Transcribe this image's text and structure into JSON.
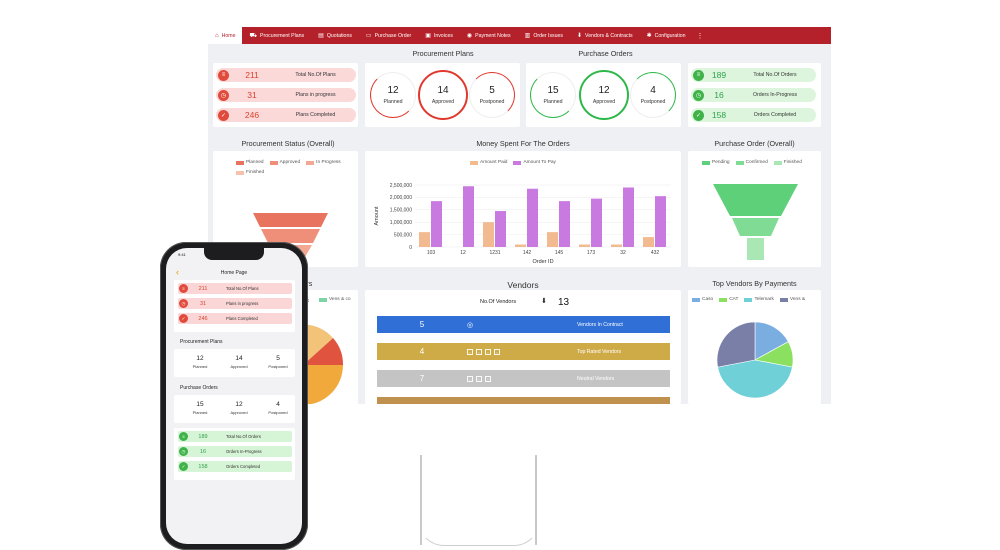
{
  "nav": {
    "items": [
      {
        "label": "Home",
        "icon": "home-icon",
        "glyph": "⌂",
        "active": true
      },
      {
        "label": "Procurement Plans",
        "icon": "truck-icon",
        "glyph": "⛟"
      },
      {
        "label": "Quotations",
        "icon": "document-icon",
        "glyph": "▤"
      },
      {
        "label": "Purchase Order",
        "icon": "cart-icon",
        "glyph": "▭"
      },
      {
        "label": "Invoices",
        "icon": "invoice-icon",
        "glyph": "▣"
      },
      {
        "label": "Payment Notes",
        "icon": "money-icon",
        "glyph": "◉"
      },
      {
        "label": "Order Issues",
        "icon": "issue-icon",
        "glyph": "▥"
      },
      {
        "label": "Vendors & Contracts",
        "icon": "download-icon",
        "glyph": "⬇"
      },
      {
        "label": "Configuration",
        "icon": "gear-icon",
        "glyph": "✱"
      }
    ],
    "more": "⋮"
  },
  "procurement_plans": {
    "title": "Procurement Plans",
    "pills": [
      {
        "value": "211",
        "label": "Total No.Of Plans",
        "glyph": "≡"
      },
      {
        "value": "31",
        "label": "Plans in progress",
        "glyph": "◷"
      },
      {
        "value": "246",
        "label": "Plans Completed",
        "glyph": "✓"
      }
    ],
    "rings": [
      {
        "value": "12",
        "label": "Planned"
      },
      {
        "value": "14",
        "label": "Approved"
      },
      {
        "value": "5",
        "label": "Postponed"
      }
    ]
  },
  "purchase_orders": {
    "title": "Purchase Orders",
    "rings": [
      {
        "value": "15",
        "label": "Planned"
      },
      {
        "value": "12",
        "label": "Approved"
      },
      {
        "value": "4",
        "label": "Postponed"
      }
    ],
    "pills": [
      {
        "value": "189",
        "label": "Total No.Of Orders",
        "glyph": "≡"
      },
      {
        "value": "16",
        "label": "Orders In-Progress",
        "glyph": "◷"
      },
      {
        "value": "158",
        "label": "Orders Completed",
        "glyph": "✓"
      }
    ]
  },
  "procurement_status": {
    "title": "Procurement Status (Overall)",
    "legend": [
      {
        "label": "Planned",
        "color": "#e8735f"
      },
      {
        "label": "Approved",
        "color": "#ef8f7a"
      },
      {
        "label": "In Progress",
        "color": "#f2a893"
      },
      {
        "label": "Finished",
        "color": "#f6c2b0"
      }
    ]
  },
  "money_spent": {
    "title": "Money Spent For The Orders",
    "legend": [
      {
        "label": "Amount Paid",
        "color": "#f2bb8f"
      },
      {
        "label": "Amount To Pay",
        "color": "#c97ae0"
      }
    ],
    "chart_data": {
      "type": "bar",
      "categories": [
        "103",
        "12",
        "1231",
        "142",
        "145",
        "173",
        "32",
        "432"
      ],
      "series": [
        {
          "name": "Amount Paid",
          "values": [
            600000,
            0,
            1000000,
            100000,
            600000,
            100000,
            100000,
            400000
          ]
        },
        {
          "name": "Amount To Pay",
          "values": [
            1850000,
            2450000,
            1450000,
            2350000,
            1850000,
            1950000,
            2400000,
            2050000
          ]
        }
      ],
      "xlabel": "Order ID",
      "ylabel": "Amount",
      "ylim": [
        0,
        2500000
      ],
      "yticks": [
        "0",
        "500,000",
        "1,000,000",
        "1,500,000",
        "2,000,000",
        "2,500,000"
      ],
      "ytick_values": [
        0,
        500000,
        1000000,
        1500000,
        2000000,
        2500000
      ]
    }
  },
  "purchase_order_overall": {
    "title": "Purchase Order (Overall)",
    "legend": [
      {
        "label": "Pending",
        "color": "#5fd07a"
      },
      {
        "label": "Confirmed",
        "color": "#80dc94"
      },
      {
        "label": "Finished",
        "color": "#a9e8b5"
      }
    ]
  },
  "left_partial": {
    "title": "rders",
    "legend_text": "rk",
    "legend_item": "Vens & co"
  },
  "vendors": {
    "title": "Vendors",
    "count_label": "No.Of Vendors",
    "count_glyph": "⬇",
    "count": "13",
    "rows": [
      {
        "value": "5",
        "label": "Vendors In Contract",
        "color": "#2f6fd6",
        "icons": [
          "◎"
        ]
      },
      {
        "value": "4",
        "label": "Top Rated Vendors",
        "color": "#cfab48",
        "icons": [
          "▫",
          "▫",
          "▫",
          "▫"
        ]
      },
      {
        "value": "7",
        "label": "Neutral Vendors",
        "color": "#c4c4c4",
        "icons": [
          "▫",
          "▫",
          "▫"
        ]
      },
      {
        "value": "",
        "label": "",
        "color": "#c0904f",
        "icons": []
      }
    ]
  },
  "top_vendors": {
    "title": "Top Vendors By Payments",
    "legend": [
      {
        "label": "Caso",
        "color": "#7aaee0"
      },
      {
        "label": "CAT",
        "color": "#8be05f"
      },
      {
        "label": "Telemark",
        "color": "#6fd0d8"
      },
      {
        "label": "Vens &",
        "color": "#7a7fa8"
      }
    ],
    "chart_data": {
      "type": "pie",
      "labels": [
        "Caso",
        "CAT",
        "Telemark",
        "Vens &"
      ],
      "values": [
        17,
        11,
        44,
        28
      ]
    }
  },
  "phone": {
    "time": "9:41",
    "back": "‹",
    "title": "Home Page",
    "plan_pills": [
      {
        "value": "211",
        "label": "Total No.Of Plans",
        "glyph": "≡"
      },
      {
        "value": "31",
        "label": "Plans in progress",
        "glyph": "◷"
      },
      {
        "value": "246",
        "label": "Plans Completed",
        "glyph": "✓"
      }
    ],
    "plans_title": "Procurement Plans",
    "plans": [
      {
        "value": "12",
        "label": "Planned"
      },
      {
        "value": "14",
        "label": "Approved"
      },
      {
        "value": "5",
        "label": "Postponed"
      }
    ],
    "orders_title": "Purchase Orders",
    "orders": [
      {
        "value": "15",
        "label": "Planned"
      },
      {
        "value": "12",
        "label": "Approved"
      },
      {
        "value": "4",
        "label": "Postponed"
      }
    ],
    "order_pills": [
      {
        "value": "189",
        "label": "Total No.Of Orders",
        "glyph": "≡"
      },
      {
        "value": "16",
        "label": "Orders In-Progress",
        "glyph": "◷"
      },
      {
        "value": "158",
        "label": "Orders Completed",
        "glyph": "✓"
      }
    ]
  }
}
